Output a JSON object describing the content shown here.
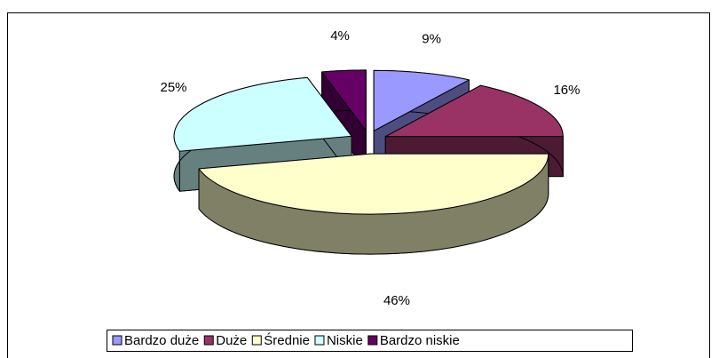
{
  "chart_data": {
    "type": "pie3d",
    "categories": [
      "Bardzo duże",
      "Duże",
      "Średnie",
      "Niskie",
      "Bardzo niskie"
    ],
    "values": [
      9,
      16,
      46,
      25,
      4
    ],
    "value_labels": [
      "9%",
      "16%",
      "46%",
      "25%",
      "4%"
    ],
    "colors": [
      "#9999ff",
      "#993366",
      "#ffffcc",
      "#ccffff",
      "#660066"
    ],
    "legend": "bottom"
  }
}
